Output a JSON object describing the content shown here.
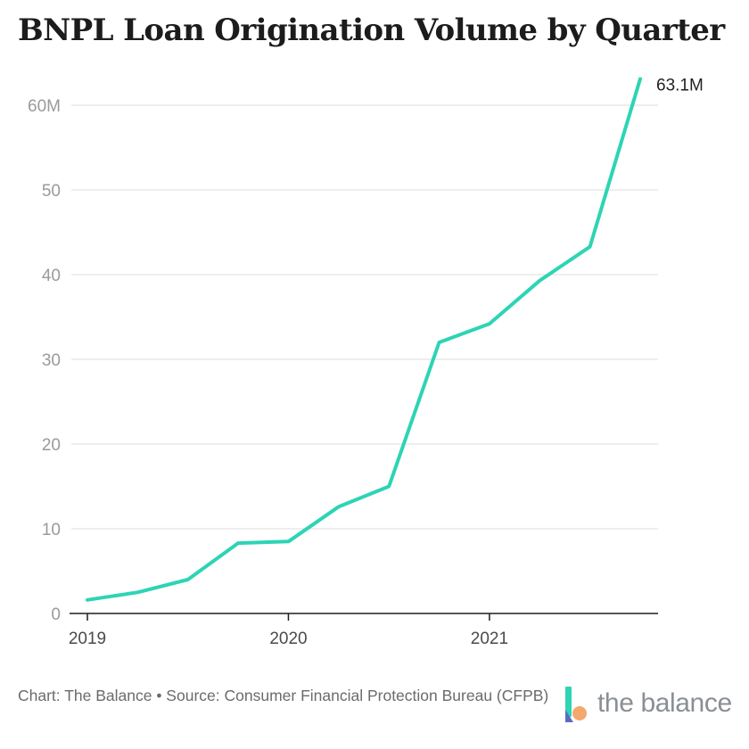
{
  "chart_data": {
    "type": "line",
    "title": "BNPL Loan Origination Volume by Quarter",
    "x": [
      "2019 Q1",
      "2019 Q2",
      "2019 Q3",
      "2019 Q4",
      "2020 Q1",
      "2020 Q2",
      "2020 Q3",
      "2020 Q4",
      "2021 Q1",
      "2021 Q2",
      "2021 Q3",
      "2021 Q4"
    ],
    "series": [
      {
        "values": [
          1.6,
          2.5,
          4.0,
          8.3,
          8.5,
          12.6,
          15.0,
          32.0,
          34.2,
          39.3,
          43.3,
          63.1
        ]
      }
    ],
    "x_tick_labels": [
      "2019",
      "2020",
      "2021"
    ],
    "y_tick_labels": [
      "0",
      "10",
      "20",
      "30",
      "40",
      "50",
      "60M"
    ],
    "y_ticks": [
      0,
      10,
      20,
      30,
      40,
      50,
      60
    ],
    "ylim": [
      0,
      63.1
    ],
    "end_label": "63.1M",
    "grid": true,
    "line_color": "#2dd4b5"
  },
  "footer": {
    "source": "Chart: The Balance • Source: Consumer Financial Protection Bureau (CFPB)"
  },
  "brand": {
    "name": "the balance",
    "colors": [
      "#2dd4b5",
      "#f4a86e",
      "#5c6bc0"
    ]
  }
}
